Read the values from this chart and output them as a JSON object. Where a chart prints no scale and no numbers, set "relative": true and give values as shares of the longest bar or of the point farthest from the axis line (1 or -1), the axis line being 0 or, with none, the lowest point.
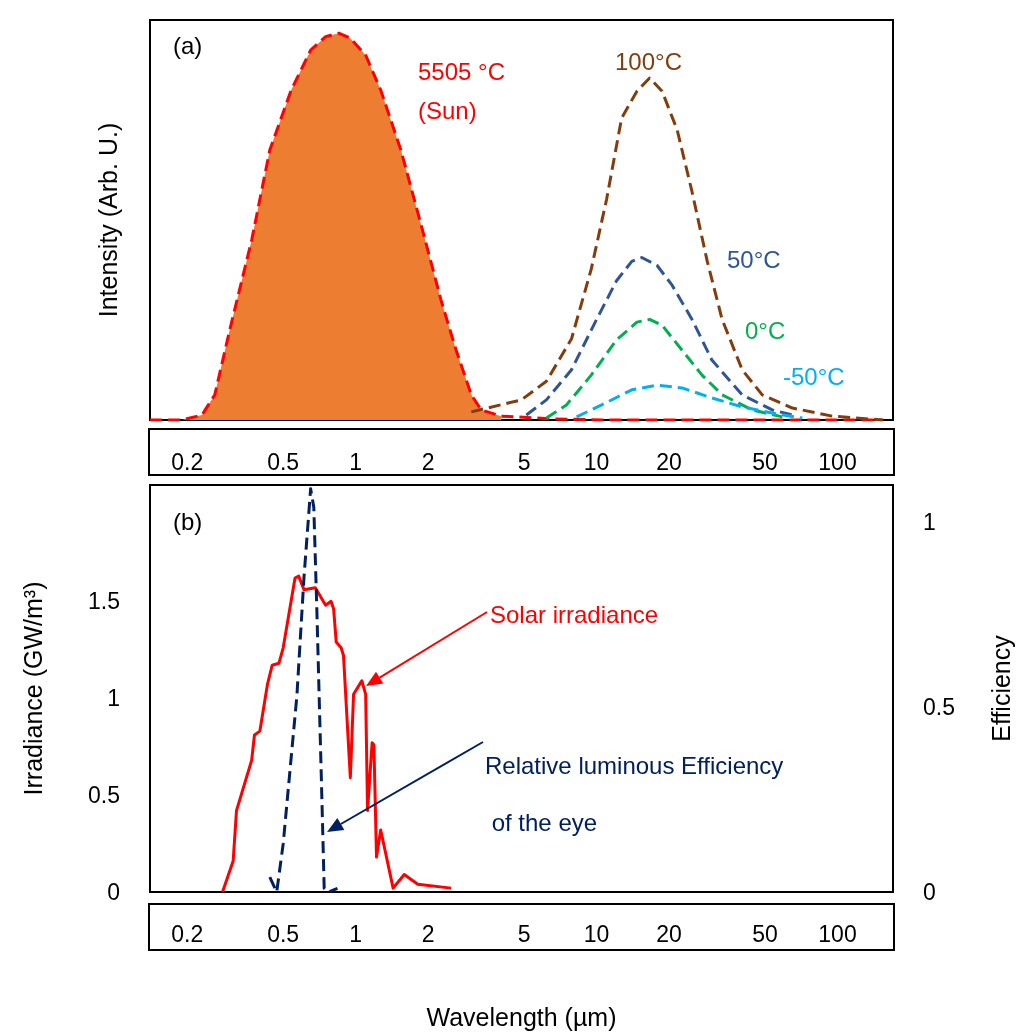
{
  "chart_data": [
    {
      "type": "line",
      "relative": true,
      "log": "x",
      "line_style": "dashed",
      "tick_labels": "x",
      "ylabel": "Intensity (Arb. U.)",
      "xlim": [
        0.14,
        170
      ],
      "xticks": [
        0.2,
        0.5,
        1,
        2,
        5,
        10,
        20,
        50,
        100
      ],
      "annotations": [
        "(a)",
        "(Sun)"
      ],
      "series": [
        {
          "type": "area",
          "color": "#ed7d31",
          "x": [
            0.14,
            0.19,
            0.23,
            0.26,
            0.3,
            0.37,
            0.44,
            0.54,
            0.65,
            0.75,
            0.85,
            0.95,
            1.1,
            1.27,
            1.54,
            1.87,
            2.26,
            2.61,
            3.02,
            3.32,
            4.02
          ],
          "values": [
            0,
            0,
            0.013,
            0.065,
            0.233,
            0.465,
            0.698,
            0.853,
            0.956,
            0.991,
            1,
            0.987,
            0.943,
            0.853,
            0.698,
            0.504,
            0.31,
            0.181,
            0.065,
            0.026,
            0.01
          ]
        },
        {
          "name": "5505 °C",
          "color": "#ff0000",
          "x": [
            0.14,
            0.19,
            0.23,
            0.26,
            0.3,
            0.37,
            0.44,
            0.54,
            0.65,
            0.75,
            0.85,
            0.95,
            1.1,
            1.27,
            1.54,
            1.87,
            2.26,
            2.61,
            3.02,
            3.32,
            4.02,
            6.5,
            10.5,
            27.4,
            154
          ],
          "values": [
            0,
            0,
            0.013,
            0.065,
            0.233,
            0.465,
            0.698,
            0.853,
            0.956,
            0.991,
            1,
            0.987,
            0.943,
            0.853,
            0.698,
            0.504,
            0.31,
            0.181,
            0.065,
            0.026,
            0.01,
            0.003,
            0,
            0,
            0
          ]
        },
        {
          "name": "100°C",
          "color": "#843c0c",
          "x": [
            3.02,
            4.87,
            6.19,
            7.87,
            9.5,
            11,
            12.7,
            14.7,
            16.6,
            18.7,
            21.6,
            24.9,
            28.8,
            33.2,
            40.2,
            48.7,
            65,
            95,
            154
          ],
          "values": [
            0.021,
            0.052,
            0.1,
            0.21,
            0.39,
            0.57,
            0.78,
            0.85,
            0.884,
            0.85,
            0.75,
            0.59,
            0.41,
            0.26,
            0.13,
            0.065,
            0.031,
            0.01,
            0
          ]
        },
        {
          "name": "50°C",
          "color": "#2f5597",
          "x": [
            5.11,
            6.19,
            7.87,
            10,
            12.1,
            14,
            15.4,
            17.8,
            20.5,
            24.9,
            30.1,
            40.2,
            53.6,
            65
          ],
          "values": [
            0.013,
            0.052,
            0.13,
            0.26,
            0.36,
            0.41,
            0.42,
            0.4,
            0.35,
            0.26,
            0.155,
            0.065,
            0.026,
            0.013
          ]
        },
        {
          "name": "0°C",
          "color": "#00b050",
          "x": [
            6.19,
            7.5,
            9.5,
            12.1,
            14.7,
            16.6,
            18.7,
            22.6,
            27.4,
            33.2,
            44.3,
            59
          ],
          "values": [
            0.005,
            0.039,
            0.116,
            0.207,
            0.253,
            0.26,
            0.245,
            0.181,
            0.116,
            0.065,
            0.026,
            0.008
          ]
        },
        {
          "name": "-50°C",
          "color": "#00b0f0",
          "x": [
            8.26,
            10.5,
            14,
            17.8,
            22.6,
            30.1,
            40.2,
            53.6,
            71.5
          ],
          "values": [
            0.008,
            0.039,
            0.078,
            0.09,
            0.083,
            0.057,
            0.034,
            0.018,
            0.005
          ]
        }
      ]
    },
    {
      "type": "line",
      "log": "x",
      "xlabel": "Wavelength (µm)",
      "ylabel": "Irradiance (GW/m³)",
      "y2label": "Efficiency",
      "xlim": [
        0.14,
        170
      ],
      "xticks": [
        0.2,
        0.5,
        1,
        2,
        5,
        10,
        20,
        50,
        100
      ],
      "ylim": [
        0,
        2.1
      ],
      "yticks": [
        0,
        0.5,
        1,
        1.5
      ],
      "y2lim": [
        0,
        1.1
      ],
      "y2ticks": [
        0,
        0.5,
        1
      ],
      "annotations": [
        "(b)"
      ],
      "series": [
        {
          "name": "Solar irradiance",
          "color": "#ff0000",
          "line_style": "solid",
          "x": [
            0.28,
            0.31,
            0.32,
            0.37,
            0.38,
            0.4,
            0.43,
            0.45,
            0.48,
            0.5,
            0.56,
            0.58,
            0.61,
            0.68,
            0.75,
            0.79,
            0.81,
            0.83,
            0.87,
            0.89,
            0.95,
            0.98,
            1.06,
            1.1,
            1.12,
            1.17,
            1.19,
            1.22,
            1.27,
            1.43,
            1.59,
            1.81,
            2.49
          ],
          "values": [
            0,
            0.16,
            0.42,
            0.68,
            0.81,
            0.83,
            1.07,
            1.17,
            1.18,
            1.26,
            1.62,
            1.63,
            1.56,
            1.57,
            1.48,
            1.5,
            1.46,
            1.29,
            1.26,
            1.22,
            0.59,
            1.02,
            1.09,
            1.02,
            0.42,
            0.77,
            0.76,
            0.18,
            0.32,
            0.02,
            0.09,
            0.04,
            0.02
          ]
        },
        {
          "name": "Relative luminous Efficiency of the eye",
          "color": "#002060",
          "line_style": "dashed",
          "axis": "y2",
          "x": [
            0.44,
            0.47,
            0.5,
            0.57,
            0.61,
            0.65,
            0.67,
            0.69,
            0.72,
            0.74,
            0.77,
            0.84
          ],
          "values": [
            0.04,
            0,
            0.13,
            0.53,
            0.85,
            1.09,
            1.04,
            0.76,
            0.31,
            0.01,
            0,
            0.01
          ]
        }
      ]
    }
  ]
}
